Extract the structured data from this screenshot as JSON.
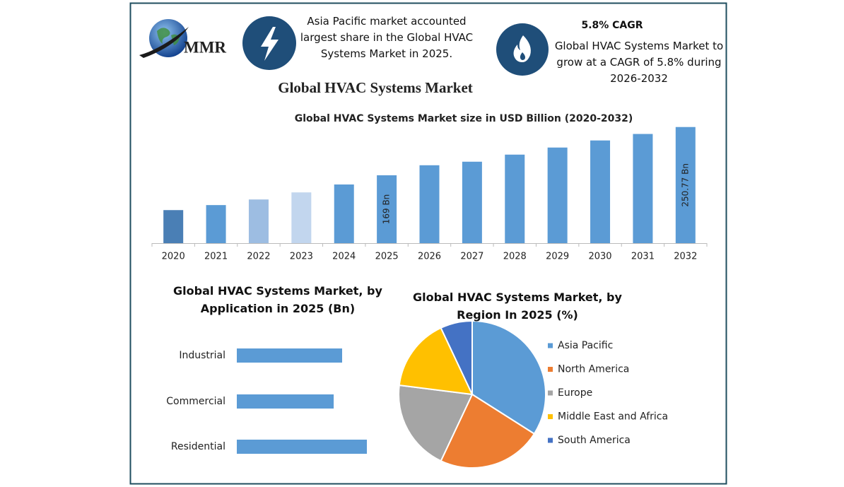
{
  "brand": "MMR",
  "title": "Global HVAC Systems Market",
  "callouts": [
    {
      "text": "Asia Pacific market accounted largest share in the Global HVAC Systems Market in 2025."
    },
    {
      "heading": "5.8% CAGR",
      "text": "Global HVAC Systems Market to grow at a CAGR of 5.8% during 2026-2032"
    }
  ],
  "chart_data": [
    {
      "type": "bar",
      "title": "Global HVAC Systems Market size in USD Billion (2020-2032)",
      "categories": [
        "2020",
        "2021",
        "2022",
        "2023",
        "2024",
        "2025",
        "2026",
        "2027",
        "2028",
        "2029",
        "2030",
        "2031",
        "2032"
      ],
      "values": [
        110,
        118.5,
        128,
        140,
        153.4,
        169,
        186,
        192,
        204,
        216,
        228,
        239,
        250.77
      ],
      "value_labels": [
        null,
        null,
        null,
        null,
        null,
        "169 Bn",
        null,
        null,
        null,
        null,
        null,
        null,
        "250.77 Bn"
      ],
      "colors": [
        "#4a7fb5",
        "#5b9bd5",
        "#9dbde2",
        "#c2d6ee",
        "#5b9bd5",
        "#5b9bd5",
        "#5b9bd5",
        "#5b9bd5",
        "#5b9bd5",
        "#5b9bd5",
        "#5b9bd5",
        "#5b9bd5",
        "#5b9bd5"
      ],
      "ylim": [
        54,
        260
      ]
    },
    {
      "type": "bar",
      "orientation": "horizontal",
      "title": "Global HVAC Systems Market, by Application in 2025 (Bn)",
      "categories": [
        "Industrial",
        "Commercial",
        "Residential"
      ],
      "values": [
        53.6,
        49.3,
        66.2
      ],
      "color": "#5b9bd5",
      "xlim": [
        0,
        70
      ]
    },
    {
      "type": "pie",
      "title": "Global HVAC Systems Market, by Region In 2025 (%)",
      "categories": [
        "Asia Pacific",
        "North America",
        "Europe",
        "Middle East and Africa",
        "South America"
      ],
      "values": [
        34,
        23,
        20,
        16,
        7
      ],
      "colors": [
        "#5b9bd5",
        "#ed7d31",
        "#a5a5a5",
        "#ffc000",
        "#4472c4"
      ]
    }
  ]
}
